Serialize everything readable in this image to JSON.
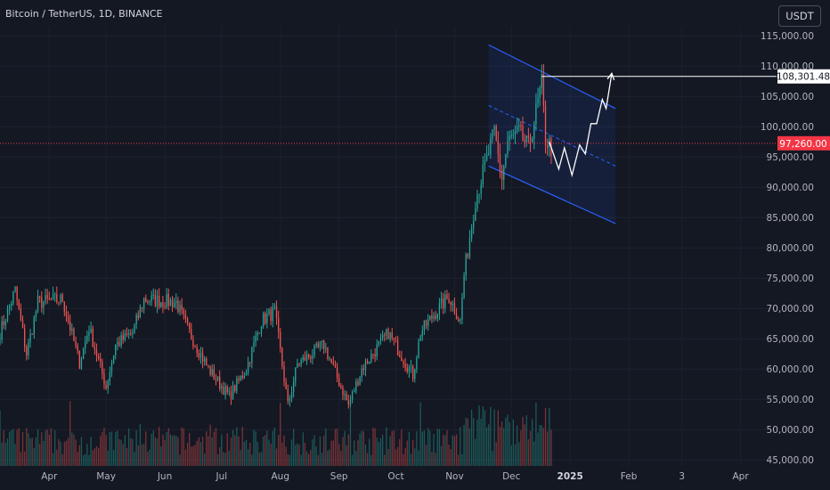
{
  "header": {
    "symbol": "Bitcoin / TetherUS, 1D, BINANCE",
    "currency_button": "USDT"
  },
  "colors": {
    "background": "#141823",
    "up": "#26a69a",
    "down": "#ef5350",
    "channel": "#2962ff",
    "projection": "#ffffff",
    "current_price_label": "#f23645"
  },
  "chart_data": {
    "type": "candlestick",
    "symbol": "Bitcoin / TetherUS",
    "interval": "1D",
    "exchange": "BINANCE",
    "y_axis": {
      "ticks": [
        "45,000.00",
        "50,000.00",
        "55,000.00",
        "60,000.00",
        "65,000.00",
        "70,000.00",
        "75,000.00",
        "80,000.00",
        "85,000.00",
        "90,000.00",
        "95,000.00",
        "100,000.00",
        "105,000.00",
        "110,000.00",
        "115,000.00"
      ],
      "range": [
        44000,
        116500
      ]
    },
    "x_axis": {
      "ticks": [
        "Apr",
        "May",
        "Jun",
        "Jul",
        "Aug",
        "Sep",
        "Oct",
        "Nov",
        "Dec",
        "2025",
        "Feb",
        "3",
        "Apr"
      ],
      "range": [
        "2024-03-06",
        "2025-04-20"
      ]
    },
    "current_price": {
      "label": "97,260.00",
      "value": 97260
    },
    "marked_level": {
      "label": "108,301.48",
      "value": 108301.48,
      "from": "2024-12-17"
    },
    "monthly_path": [
      [
        "2024-03-06",
        66000
      ],
      [
        "2024-03-14",
        73000
      ],
      [
        "2024-03-20",
        62500
      ],
      [
        "2024-03-26",
        71000
      ],
      [
        "2024-04-08",
        71500
      ],
      [
        "2024-04-17",
        61000
      ],
      [
        "2024-04-22",
        66800
      ],
      [
        "2024-05-01",
        57000
      ],
      [
        "2024-05-06",
        64000
      ],
      [
        "2024-05-15",
        66000
      ],
      [
        "2024-05-21",
        71500
      ],
      [
        "2024-06-07",
        71000
      ],
      [
        "2024-06-14",
        66000
      ],
      [
        "2024-06-24",
        60000
      ],
      [
        "2024-07-05",
        55500
      ],
      [
        "2024-07-14",
        60000
      ],
      [
        "2024-07-22",
        68000
      ],
      [
        "2024-07-29",
        69500
      ],
      [
        "2024-08-05",
        54000
      ],
      [
        "2024-08-10",
        60800
      ],
      [
        "2024-08-24",
        64000
      ],
      [
        "2024-09-06",
        54000
      ],
      [
        "2024-09-13",
        60000
      ],
      [
        "2024-09-27",
        66000
      ],
      [
        "2024-10-10",
        59000
      ],
      [
        "2024-10-14",
        66000
      ],
      [
        "2024-10-21",
        69000
      ],
      [
        "2024-10-29",
        72000
      ],
      [
        "2024-11-04",
        67800
      ],
      [
        "2024-11-06",
        75500
      ],
      [
        "2024-11-12",
        88000
      ],
      [
        "2024-11-22",
        99000
      ],
      [
        "2024-11-26",
        91500
      ],
      [
        "2024-11-29",
        97500
      ],
      [
        "2024-12-05",
        99000
      ],
      [
        "2024-12-10",
        96500
      ],
      [
        "2024-12-17",
        107000
      ],
      [
        "2024-12-19",
        98000
      ],
      [
        "2024-12-22",
        96500
      ]
    ],
    "channel": {
      "start": "2024-11-19",
      "end": "2025-01-25",
      "upper": [
        113500,
        103000
      ],
      "middle": [
        103500,
        93500
      ],
      "lower": [
        93500,
        84000
      ]
    },
    "projection": [
      [
        "2024-12-21",
        97500
      ],
      [
        "2024-12-26",
        93000
      ],
      [
        "2024-12-29",
        96500
      ],
      [
        "2025-01-02",
        92000
      ],
      [
        "2025-01-06",
        97000
      ],
      [
        "2025-01-09",
        95500
      ],
      [
        "2025-01-12",
        100500
      ],
      [
        "2025-01-15",
        100500
      ],
      [
        "2025-01-18",
        104500
      ],
      [
        "2025-01-20",
        103000
      ],
      [
        "2025-01-23",
        108800
      ]
    ]
  }
}
